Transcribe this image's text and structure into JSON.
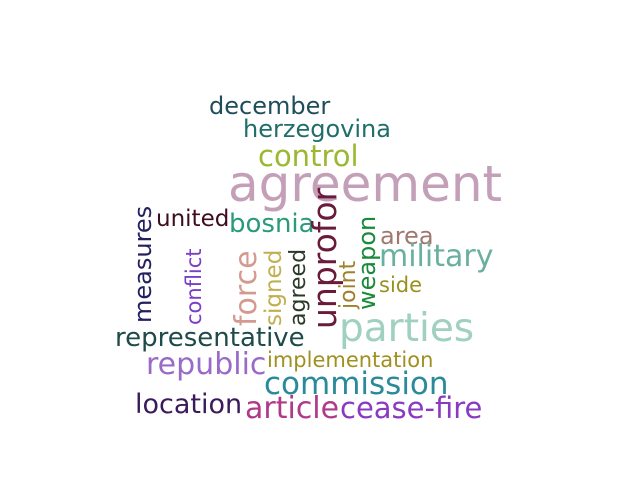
{
  "words": {
    "december": {
      "text": "december",
      "color": "#1f4e5a"
    },
    "herzegovina": {
      "text": "herzegovina",
      "color": "#1f6e6a"
    },
    "control": {
      "text": "control",
      "color": "#9ab832"
    },
    "agreement": {
      "text": "agreement",
      "color": "#c4a0b8"
    },
    "united": {
      "text": "united",
      "color": "#3d0c1e"
    },
    "bosnia": {
      "text": "bosnia",
      "color": "#2a9a7a"
    },
    "measures": {
      "text": "measures",
      "color": "#24205e"
    },
    "conflict": {
      "text": "conflict",
      "color": "#7a3ec8"
    },
    "force": {
      "text": "force",
      "color": "#d49a90"
    },
    "signed": {
      "text": "signed",
      "color": "#c0b050"
    },
    "agreed": {
      "text": "agreed",
      "color": "#2a3a2a"
    },
    "unprofor": {
      "text": "unprofor",
      "color": "#6a1a3a"
    },
    "joint": {
      "text": "joint",
      "color": "#a08028"
    },
    "weapon": {
      "text": "weapon",
      "color": "#1a8a3a"
    },
    "area": {
      "text": "area",
      "color": "#a07870"
    },
    "military": {
      "text": "military",
      "color": "#6ab0a0"
    },
    "side": {
      "text": "side",
      "color": "#9a9020"
    },
    "parties": {
      "text": "parties",
      "color": "#a0d0c0"
    },
    "representative": {
      "text": "representative",
      "color": "#1f4a4a"
    },
    "implementation": {
      "text": "implementation",
      "color": "#a09020"
    },
    "republic": {
      "text": "republic",
      "color": "#9a6ac8"
    },
    "commission": {
      "text": "commission",
      "color": "#2a8a9a"
    },
    "location": {
      "text": "location",
      "color": "#3a1a5a"
    },
    "article": {
      "text": "article",
      "color": "#b03a8a"
    },
    "ceasefire": {
      "text": "cease-fire",
      "color": "#8a3ac0"
    }
  }
}
